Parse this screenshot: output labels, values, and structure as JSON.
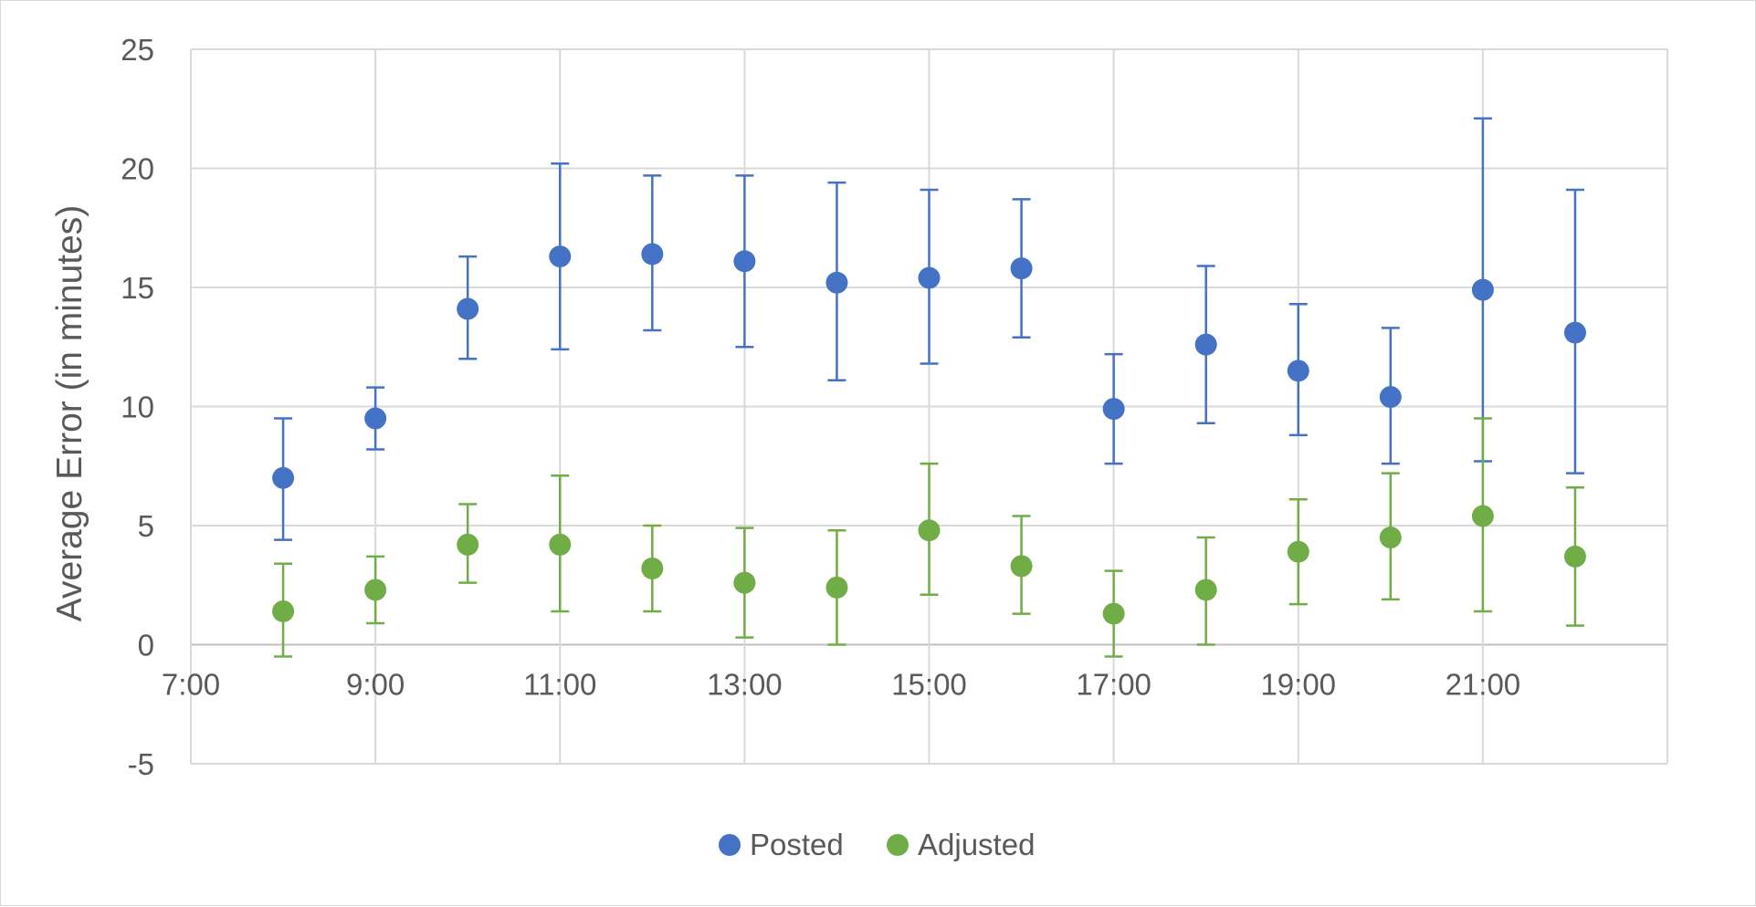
{
  "chart_data": {
    "type": "scatter",
    "title": "",
    "xlabel": "",
    "ylabel": "Average Error (in minutes)",
    "xlim": [
      "7:00",
      "23:00"
    ],
    "ylim": [
      -5,
      25
    ],
    "x_ticks": [
      "7:00",
      "9:00",
      "11:00",
      "13:00",
      "15:00",
      "17:00",
      "19:00",
      "21:00"
    ],
    "y_ticks": [
      -5,
      0,
      5,
      10,
      15,
      20,
      25
    ],
    "grid": true,
    "legend_position": "bottom",
    "error_bars": true,
    "series": [
      {
        "name": "Posted",
        "color": "#4472c4",
        "points": [
          {
            "x": "8:00",
            "y": 7.0,
            "low": 4.4,
            "high": 9.5
          },
          {
            "x": "9:00",
            "y": 9.5,
            "low": 8.2,
            "high": 10.8
          },
          {
            "x": "10:00",
            "y": 14.1,
            "low": 12.0,
            "high": 16.3
          },
          {
            "x": "11:00",
            "y": 16.3,
            "low": 12.4,
            "high": 20.2
          },
          {
            "x": "12:00",
            "y": 16.4,
            "low": 13.2,
            "high": 19.7
          },
          {
            "x": "13:00",
            "y": 16.1,
            "low": 12.5,
            "high": 19.7
          },
          {
            "x": "14:00",
            "y": 15.2,
            "low": 11.1,
            "high": 19.4
          },
          {
            "x": "15:00",
            "y": 15.4,
            "low": 11.8,
            "high": 19.1
          },
          {
            "x": "16:00",
            "y": 15.8,
            "low": 12.9,
            "high": 18.7
          },
          {
            "x": "17:00",
            "y": 9.9,
            "low": 7.6,
            "high": 12.2
          },
          {
            "x": "18:00",
            "y": 12.6,
            "low": 9.3,
            "high": 15.9
          },
          {
            "x": "19:00",
            "y": 11.5,
            "low": 8.8,
            "high": 14.3
          },
          {
            "x": "20:00",
            "y": 10.4,
            "low": 7.6,
            "high": 13.3
          },
          {
            "x": "21:00",
            "y": 14.9,
            "low": 7.7,
            "high": 22.1
          },
          {
            "x": "22:00",
            "y": 13.1,
            "low": 7.2,
            "high": 19.1
          }
        ]
      },
      {
        "name": "Adjusted",
        "color": "#70ad47",
        "points": [
          {
            "x": "8:00",
            "y": 1.4,
            "low": -0.5,
            "high": 3.4
          },
          {
            "x": "9:00",
            "y": 2.3,
            "low": 0.9,
            "high": 3.7
          },
          {
            "x": "10:00",
            "y": 4.2,
            "low": 2.6,
            "high": 5.9
          },
          {
            "x": "11:00",
            "y": 4.2,
            "low": 1.4,
            "high": 7.1
          },
          {
            "x": "12:00",
            "y": 3.2,
            "low": 1.4,
            "high": 5.0
          },
          {
            "x": "13:00",
            "y": 2.6,
            "low": 0.3,
            "high": 4.9
          },
          {
            "x": "14:00",
            "y": 2.4,
            "low": 0.0,
            "high": 4.8
          },
          {
            "x": "15:00",
            "y": 4.8,
            "low": 2.1,
            "high": 7.6
          },
          {
            "x": "16:00",
            "y": 3.3,
            "low": 1.3,
            "high": 5.4
          },
          {
            "x": "17:00",
            "y": 1.3,
            "low": -0.5,
            "high": 3.1
          },
          {
            "x": "18:00",
            "y": 2.3,
            "low": 0.0,
            "high": 4.5
          },
          {
            "x": "19:00",
            "y": 3.9,
            "low": 1.7,
            "high": 6.1
          },
          {
            "x": "20:00",
            "y": 4.5,
            "low": 1.9,
            "high": 7.2
          },
          {
            "x": "21:00",
            "y": 5.4,
            "low": 1.4,
            "high": 9.5
          },
          {
            "x": "22:00",
            "y": 3.7,
            "low": 0.8,
            "high": 6.6
          }
        ]
      }
    ]
  }
}
